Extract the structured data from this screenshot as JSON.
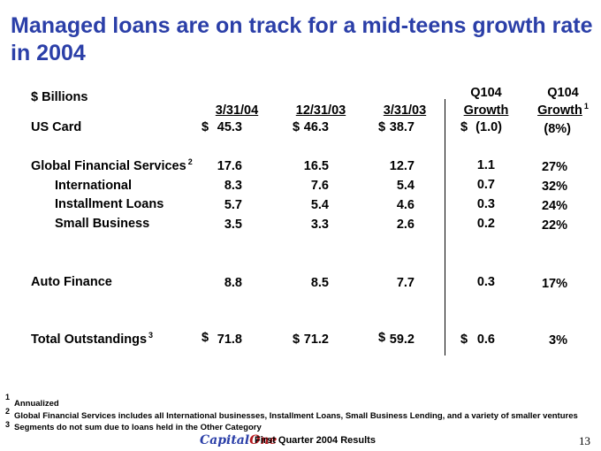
{
  "title": "Managed loans are on track for a mid-teens growth rate in 2004",
  "units": "$ Billions",
  "headers": {
    "col1": "3/31/04",
    "col2": "12/31/03",
    "col3": "3/31/03",
    "col4_line1": "Q104",
    "col4_line2": "Growth",
    "col5_line1": "Q104",
    "col5_line2": "Growth",
    "col5_note": "1"
  },
  "rows": [
    {
      "label": "US Card",
      "note": "",
      "sign1": "$",
      "v1": "45.3",
      "sign2": "$",
      "v2": "46.3",
      "sign3": "$",
      "v3": "38.7",
      "sign4": "$",
      "v4": "(1.0)",
      "v5": "(8%)"
    },
    {
      "label": "Global Financial Services",
      "note": "2",
      "sign1": "",
      "v1": "17.6",
      "sign2": "",
      "v2": "16.5",
      "sign3": "",
      "v3": "12.7",
      "sign4": "",
      "v4": "1.1",
      "v5": "27%"
    },
    {
      "label": "International",
      "note": "",
      "sign1": "",
      "v1": "8.3",
      "sign2": "",
      "v2": "7.6",
      "sign3": "",
      "v3": "5.4",
      "sign4": "",
      "v4": "0.7",
      "v5": "32%"
    },
    {
      "label": "Installment Loans",
      "note": "",
      "sign1": "",
      "v1": "5.7",
      "sign2": "",
      "v2": "5.4",
      "sign3": "",
      "v3": "4.6",
      "sign4": "",
      "v4": "0.3",
      "v5": "24%"
    },
    {
      "label": "Small Business",
      "note": "",
      "sign1": "",
      "v1": "3.5",
      "sign2": "",
      "v2": "3.3",
      "sign3": "",
      "v3": "2.6",
      "sign4": "",
      "v4": "0.2",
      "v5": "22%"
    },
    {
      "label": "Auto Finance",
      "note": "",
      "sign1": "",
      "v1": "8.8",
      "sign2": "",
      "v2": "8.5",
      "sign3": "",
      "v3": "7.7",
      "sign4": "",
      "v4": "0.3",
      "v5": "17%"
    },
    {
      "label": "Total Outstandings",
      "note": "3",
      "sign1": "$",
      "v1": "71.8",
      "sign2": "$",
      "v2": "71.2",
      "sign3": "$",
      "v3": "59.2",
      "sign4": "$",
      "v4": "0.6",
      "v5": "3%"
    }
  ],
  "footnotes": [
    {
      "num": "1",
      "text": "Annualized"
    },
    {
      "num": "2",
      "text": "Global Financial Services includes all International businesses, Installment Loans, Small Business Lending, and a variety of smaller ventures"
    },
    {
      "num": "3",
      "text": "Segments do not sum due to loans held in the Other Category"
    }
  ],
  "footer": {
    "logo_part1": "Capital",
    "logo_part2": "One",
    "title": "First Quarter 2004 Results",
    "page": "13"
  },
  "colors": {
    "title": "#2b3fa8",
    "logo_accent": "#b5171d"
  }
}
